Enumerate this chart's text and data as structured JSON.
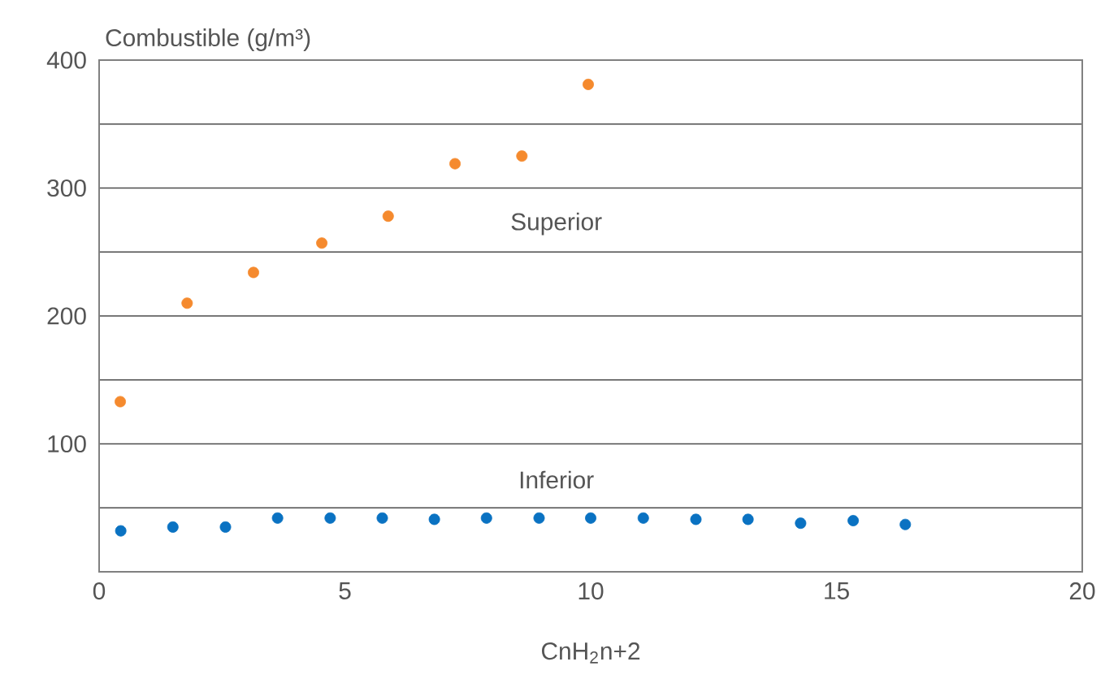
{
  "chart_data": {
    "type": "scatter",
    "ylabel": "Combustible (g/m³)",
    "xlabel": "CnH$_{2}$n+2",
    "xlim": [
      0,
      20
    ],
    "xticks": [
      0,
      5,
      10,
      15,
      20
    ],
    "ylim": [
      0,
      400
    ],
    "yticks": [
      {
        "value": 0,
        "label": null
      },
      {
        "value": 50,
        "label": null
      },
      100,
      {
        "value": 150,
        "label": null
      },
      200,
      {
        "value": 250,
        "label": null
      },
      300,
      {
        "value": 350,
        "label": null
      },
      400
    ],
    "grid": "y",
    "marker": "circle",
    "legend": false,
    "series": [
      {
        "name": "Superior",
        "color": "#f58a2e",
        "x": [
          0.43,
          1.79,
          3.14,
          4.53,
          5.88,
          7.24,
          8.6,
          9.95
        ],
        "values": [
          133,
          210,
          234,
          257,
          278,
          319,
          325,
          381
        ]
      },
      {
        "name": "Inferior",
        "color": "#0a72c2",
        "x": [
          0.44,
          1.5,
          2.57,
          3.63,
          4.7,
          5.76,
          6.82,
          7.88,
          8.95,
          10.0,
          11.07,
          12.14,
          13.2,
          14.27,
          15.34,
          16.4
        ],
        "values": [
          32,
          35,
          35,
          42,
          42,
          42,
          41,
          42,
          42,
          42,
          42,
          41,
          41,
          38,
          40,
          37
        ]
      }
    ]
  }
}
